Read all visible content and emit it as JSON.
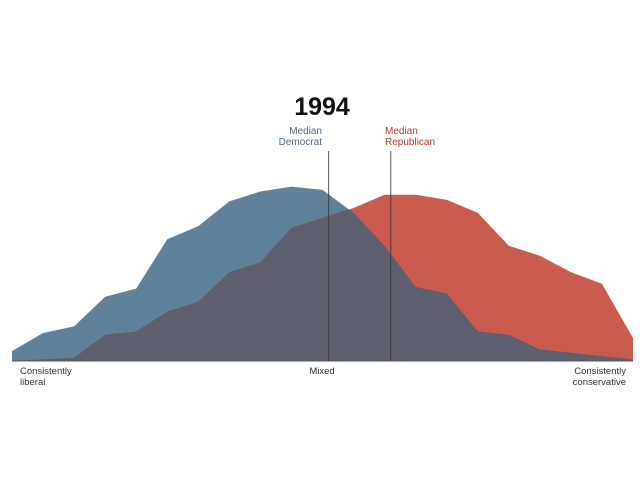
{
  "chart_data": {
    "type": "area",
    "title": "1994",
    "x": [
      0,
      1,
      2,
      3,
      4,
      5,
      6,
      7,
      8,
      9,
      10,
      11,
      12,
      13,
      14,
      15,
      16,
      17,
      18,
      19,
      20
    ],
    "series": [
      {
        "name": "Median Democrat",
        "color": "#60819a",
        "values": [
          0.06,
          0.17,
          0.21,
          0.39,
          0.44,
          0.74,
          0.82,
          0.97,
          1.03,
          1.06,
          1.04,
          0.9,
          0.7,
          0.45,
          0.41,
          0.18,
          0.16,
          0.07,
          0.05,
          0.03,
          0.01
        ]
      },
      {
        "name": "Median Republican",
        "color": "#c95b4f",
        "values": [
          0.0,
          0.01,
          0.02,
          0.16,
          0.18,
          0.3,
          0.36,
          0.54,
          0.6,
          0.81,
          0.87,
          0.93,
          1.01,
          1.01,
          0.98,
          0.9,
          0.7,
          0.64,
          0.54,
          0.47,
          0.14
        ]
      }
    ],
    "ylim": [
      0,
      1.1
    ],
    "medians": {
      "democrat": {
        "label_line1": "Median",
        "label_line2": "Democrat",
        "x": 10.2,
        "color": "#4c6a84"
      },
      "republican": {
        "label_line1": "Median",
        "label_line2": "Republican",
        "x": 12.2,
        "color": "#b13b2e"
      }
    },
    "overlap_color": "#5d5e6e",
    "x_tick_labels": {
      "left_line1": "Consistently",
      "left_line2": "liberal",
      "center": "Mixed",
      "right_line1": "Consistently",
      "right_line2": "conservative"
    },
    "grid": false,
    "legend": "none"
  }
}
